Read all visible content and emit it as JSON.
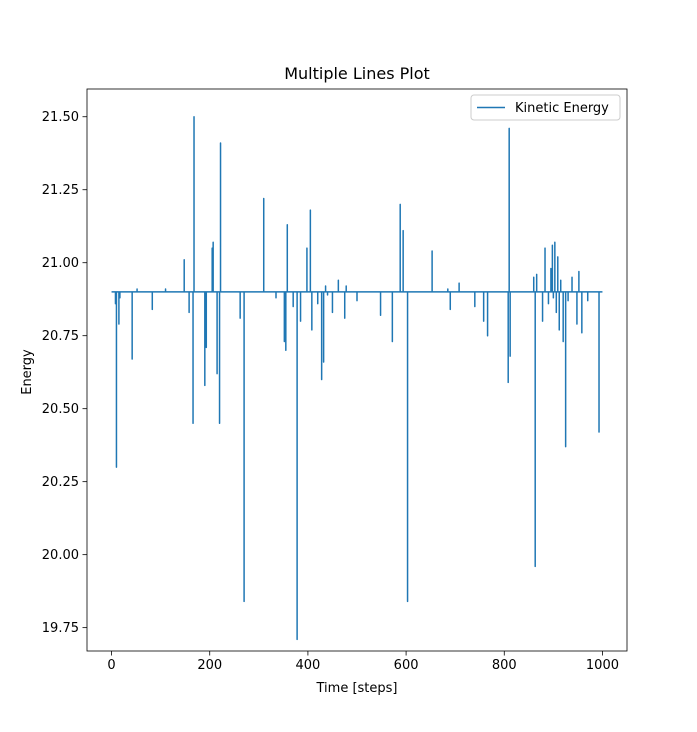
{
  "chart_data": {
    "type": "line",
    "title": "Multiple Lines Plot",
    "xlabel": "Time [steps]",
    "ylabel": "Energy",
    "xlim": [
      -50,
      1050
    ],
    "ylim": [
      19.67,
      21.595
    ],
    "x_ticks": [
      0,
      200,
      400,
      600,
      800,
      1000
    ],
    "x_tick_labels": [
      "0",
      "200",
      "400",
      "600",
      "800",
      "1000"
    ],
    "y_ticks": [
      19.75,
      20.0,
      20.25,
      20.5,
      20.75,
      21.0,
      21.25,
      21.5
    ],
    "y_tick_labels": [
      "19.75",
      "20.00",
      "20.25",
      "20.50",
      "20.75",
      "21.00",
      "21.25",
      "21.50"
    ],
    "grid": false,
    "legend_position": "top-right",
    "series": [
      {
        "name": "Kinetic Energy",
        "color": "#1f77b4",
        "baseline": 20.9,
        "x_range": [
          0,
          1000
        ],
        "spikes": [
          [
            8,
            20.86
          ],
          [
            10,
            20.3
          ],
          [
            15,
            20.79
          ],
          [
            17,
            20.88
          ],
          [
            42,
            20.67
          ],
          [
            52,
            20.91
          ],
          [
            83,
            20.84
          ],
          [
            110,
            20.91
          ],
          [
            148,
            21.01
          ],
          [
            158,
            20.83
          ],
          [
            166,
            20.45
          ],
          [
            168,
            21.5
          ],
          [
            190,
            20.58
          ],
          [
            193,
            20.71
          ],
          [
            200,
            20.9
          ],
          [
            205,
            21.05
          ],
          [
            207,
            21.07
          ],
          [
            215,
            20.62
          ],
          [
            220,
            20.45
          ],
          [
            222,
            21.41
          ],
          [
            262,
            20.81
          ],
          [
            270,
            19.84
          ],
          [
            310,
            21.22
          ],
          [
            335,
            20.88
          ],
          [
            352,
            20.73
          ],
          [
            355,
            20.7
          ],
          [
            358,
            21.13
          ],
          [
            370,
            20.85
          ],
          [
            378,
            19.71
          ],
          [
            385,
            20.8
          ],
          [
            398,
            21.05
          ],
          [
            405,
            21.18
          ],
          [
            408,
            20.77
          ],
          [
            420,
            20.86
          ],
          [
            428,
            20.6
          ],
          [
            432,
            20.66
          ],
          [
            436,
            20.92
          ],
          [
            440,
            20.89
          ],
          [
            450,
            20.83
          ],
          [
            462,
            20.94
          ],
          [
            475,
            20.81
          ],
          [
            478,
            20.92
          ],
          [
            500,
            20.87
          ],
          [
            512,
            20.9
          ],
          [
            548,
            20.82
          ],
          [
            572,
            20.73
          ],
          [
            588,
            21.2
          ],
          [
            594,
            21.11
          ],
          [
            603,
            19.84
          ],
          [
            653,
            21.04
          ],
          [
            685,
            20.91
          ],
          [
            690,
            20.84
          ],
          [
            708,
            20.93
          ],
          [
            740,
            20.85
          ],
          [
            758,
            20.8
          ],
          [
            766,
            20.75
          ],
          [
            808,
            20.59
          ],
          [
            810,
            21.46
          ],
          [
            812,
            20.68
          ],
          [
            860,
            20.95
          ],
          [
            863,
            19.96
          ],
          [
            866,
            20.96
          ],
          [
            878,
            20.8
          ],
          [
            883,
            21.05
          ],
          [
            890,
            20.86
          ],
          [
            895,
            20.98
          ],
          [
            898,
            21.06
          ],
          [
            900,
            20.88
          ],
          [
            903,
            21.07
          ],
          [
            906,
            20.83
          ],
          [
            909,
            21.02
          ],
          [
            912,
            20.77
          ],
          [
            915,
            20.94
          ],
          [
            920,
            20.73
          ],
          [
            925,
            20.37
          ],
          [
            930,
            20.87
          ],
          [
            938,
            20.95
          ],
          [
            948,
            20.79
          ],
          [
            952,
            20.97
          ],
          [
            958,
            20.76
          ],
          [
            970,
            20.87
          ],
          [
            993,
            20.42
          ]
        ]
      }
    ]
  }
}
